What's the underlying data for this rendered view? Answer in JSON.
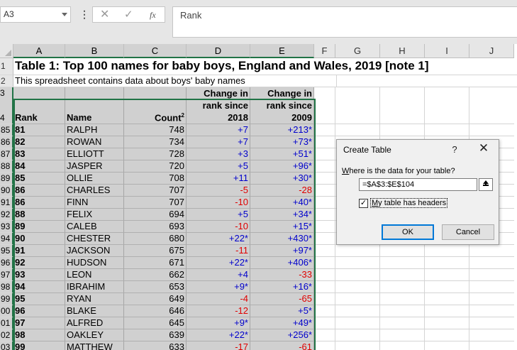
{
  "formula_bar": {
    "name_box": "A3",
    "more_glyph": "⋮",
    "cancel_glyph": "✕",
    "enter_glyph": "✓",
    "fx_label": "fx",
    "formula": "Rank"
  },
  "columns": [
    "A",
    "B",
    "C",
    "D",
    "E",
    "F",
    "G",
    "H",
    "I",
    "J"
  ],
  "rows": {
    "r1": {
      "header": "1",
      "title": "Table 1: Top 100 names for baby boys, England and Wales, 2019 [note 1]"
    },
    "r2": {
      "header": "2",
      "text": "This spreadsheet contains data about boys' baby names"
    },
    "r3": {
      "header": "3"
    },
    "r4": {
      "header": "4",
      "rank": "Rank",
      "name": "Name",
      "count": "Count",
      "count_sup": "2",
      "change2018": [
        "Change in",
        "rank since",
        "2018"
      ],
      "change2009": [
        "Change in",
        "rank since",
        "2009"
      ]
    }
  },
  "table_rows": [
    {
      "rowhdr": "85",
      "rank": "81",
      "name": "RALPH",
      "count": "748",
      "c2018": "+7",
      "c2009": "+213*"
    },
    {
      "rowhdr": "86",
      "rank": "82",
      "name": "ROWAN",
      "count": "734",
      "c2018": "+7",
      "c2009": "+73*"
    },
    {
      "rowhdr": "87",
      "rank": "83",
      "name": "ELLIOTT",
      "count": "728",
      "c2018": "+3",
      "c2009": "+51*"
    },
    {
      "rowhdr": "88",
      "rank": "84",
      "name": "JASPER",
      "count": "720",
      "c2018": "+5",
      "c2009": "+96*"
    },
    {
      "rowhdr": "89",
      "rank": "85",
      "name": "OLLIE",
      "count": "708",
      "c2018": "+11",
      "c2009": "+30*"
    },
    {
      "rowhdr": "90",
      "rank": "86",
      "name": "CHARLES",
      "count": "707",
      "c2018": "-5",
      "c2009": "-28"
    },
    {
      "rowhdr": "91",
      "rank": "86",
      "name": "FINN",
      "count": "707",
      "c2018": "-10",
      "c2009": "+40*"
    },
    {
      "rowhdr": "92",
      "rank": "88",
      "name": "FELIX",
      "count": "694",
      "c2018": "+5",
      "c2009": "+34*"
    },
    {
      "rowhdr": "93",
      "rank": "89",
      "name": "CALEB",
      "count": "693",
      "c2018": "-10",
      "c2009": "+15*"
    },
    {
      "rowhdr": "94",
      "rank": "90",
      "name": "CHESTER",
      "count": "680",
      "c2018": "+22*",
      "c2009": "+430*"
    },
    {
      "rowhdr": "95",
      "rank": "91",
      "name": "JACKSON",
      "count": "675",
      "c2018": "-11",
      "c2009": "+97*"
    },
    {
      "rowhdr": "96",
      "rank": "92",
      "name": "HUDSON",
      "count": "671",
      "c2018": "+22*",
      "c2009": "+406*"
    },
    {
      "rowhdr": "97",
      "rank": "93",
      "name": "LEON",
      "count": "662",
      "c2018": "+4",
      "c2009": "-33"
    },
    {
      "rowhdr": "98",
      "rank": "94",
      "name": "IBRAHIM",
      "count": "653",
      "c2018": "+9*",
      "c2009": "+16*"
    },
    {
      "rowhdr": "99",
      "rank": "95",
      "name": "RYAN",
      "count": "649",
      "c2018": "-4",
      "c2009": "-65"
    },
    {
      "rowhdr": "00",
      "rank": "96",
      "name": "BLAKE",
      "count": "646",
      "c2018": "-12",
      "c2009": "+5*"
    },
    {
      "rowhdr": "01",
      "rank": "97",
      "name": "ALFRED",
      "count": "645",
      "c2018": "+9*",
      "c2009": "+49*"
    },
    {
      "rowhdr": "02",
      "rank": "98",
      "name": "OAKLEY",
      "count": "639",
      "c2018": "+22*",
      "c2009": "+256*"
    },
    {
      "rowhdr": "03",
      "rank": "99",
      "name": "MATTHEW",
      "count": "633",
      "c2018": "-17",
      "c2009": "-61"
    }
  ],
  "dialog": {
    "title": "Create Table",
    "help": "?",
    "close": "✕",
    "prompt_u": "W",
    "prompt_rest": "here is the data for your table?",
    "range": "=$A$3:$E$104",
    "checkbox_checked": "✓",
    "checkbox_label_u": "M",
    "checkbox_label_rest": "y table has headers",
    "ok": "OK",
    "cancel": "Cancel"
  },
  "colors": {
    "positive": "#0000cc",
    "negative": "#e00000",
    "selection": "#217346",
    "ok_focus": "#0078d7"
  }
}
